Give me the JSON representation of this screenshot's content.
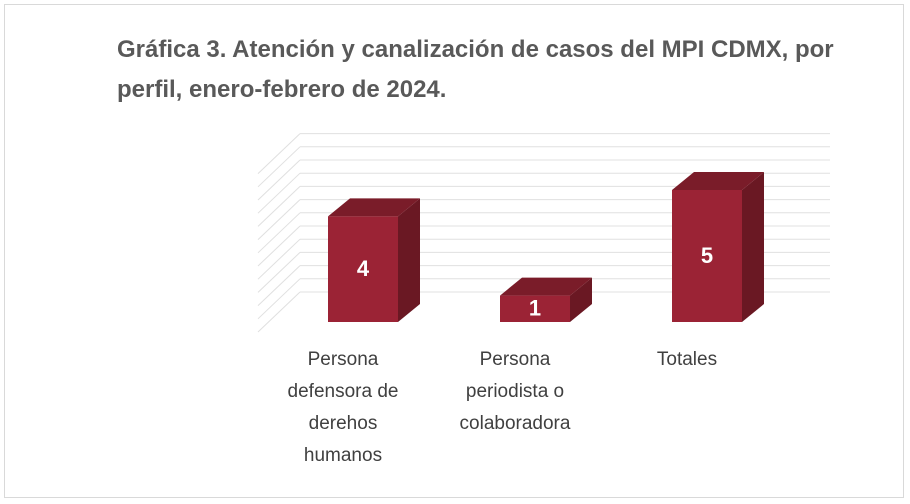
{
  "chart_data": {
    "type": "bar3d",
    "title": "Gráfica 3. Atención y canalización de casos del MPI CDMX, por perfil, enero-febrero de 2024.",
    "categories": [
      "Persona defensora de derehos humanos",
      "Persona periodista o colaboradora",
      "Totales"
    ],
    "values": [
      4,
      1,
      5
    ],
    "color": "#9b2335",
    "ylim": [
      0,
      6
    ],
    "yticks": [
      0,
      0.5,
      1,
      1.5,
      2,
      2.5,
      3,
      3.5,
      4,
      4.5,
      5,
      5.5,
      6
    ],
    "grid": true
  }
}
